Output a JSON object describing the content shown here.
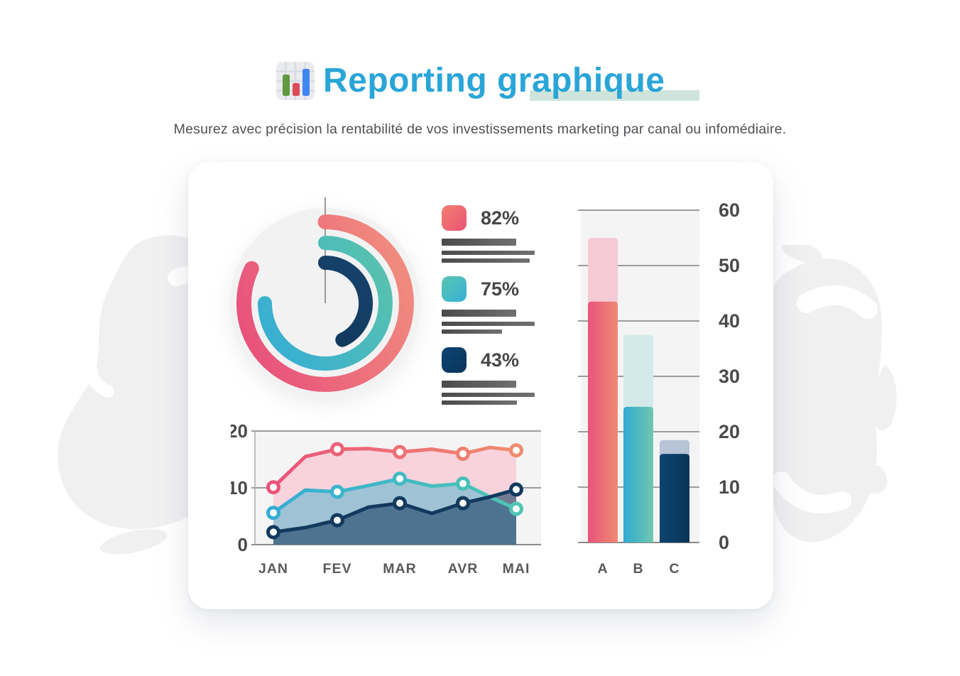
{
  "header": {
    "icon": "bar-chart-icon",
    "title": "Reporting graphique",
    "title_color": "#2AA5D8",
    "highlight_color": "#CFE5DB",
    "subtitle": "Mesurez avec précision la rentabilité de vos investissements marketing par canal ou infomédiaire."
  },
  "chart_data": [
    {
      "type": "pie",
      "variant": "concentric-radial-progress",
      "start_position": "12-oclock",
      "direction": "clockwise",
      "track_color": "#F2F2F3",
      "pointer_line_color": "#999999",
      "rings": [
        {
          "label": "82%",
          "value": 82,
          "radius": "outer",
          "gradient": [
            "#F2937E",
            "#E84E7B"
          ]
        },
        {
          "label": "75%",
          "value": 75,
          "radius": "middle",
          "gradient": [
            "#5AC3AC",
            "#35ADD6"
          ]
        },
        {
          "label": "43%",
          "value": 43,
          "radius": "inner",
          "gradient": [
            "#16426B",
            "#0E3356"
          ]
        }
      ],
      "legend": [
        {
          "label": "82%",
          "swatch_gradient": [
            "#F1806F",
            "#EB5375"
          ],
          "skeleton_bar_widths": [
            105,
            131,
            124
          ]
        },
        {
          "label": "75%",
          "swatch_gradient": [
            "#5BC5B2",
            "#35B1D4"
          ],
          "skeleton_bar_widths": [
            105,
            131,
            85
          ]
        },
        {
          "label": "43%",
          "swatch_gradient": [
            "#0E4474",
            "#093459"
          ],
          "skeleton_bar_widths": [
            105,
            131,
            106
          ]
        }
      ],
      "skeleton_bar_color": [
        "#4B4B4B",
        "#707070"
      ]
    },
    {
      "type": "area",
      "x_tick_labels": [
        "JAN",
        "FEV",
        "MAR",
        "AVR",
        "MAI"
      ],
      "note": "values sampled at each month and at midpoints between months",
      "ylim": [
        0,
        20
      ],
      "yticks": [
        0,
        10,
        20
      ],
      "plot_background": "#F4F4F5",
      "gridline_color": "#9C9CA0",
      "series": [
        {
          "name": "rose",
          "stroke_gradient": [
            "#E9537A",
            "#F08C70"
          ],
          "fill": "#F8D3DC",
          "fill_opacity": 1,
          "values": [
            10.1,
            15.5,
            16.8,
            16.9,
            16.3,
            16.8,
            16.0,
            17.1,
            16.6
          ]
        },
        {
          "name": "teal",
          "stroke_gradient": [
            "#35ADD5",
            "#4EC6B2"
          ],
          "fill": "#46B4CD",
          "fill_opacity": 0.5,
          "values": [
            5.6,
            9.6,
            9.3,
            10.4,
            11.6,
            10.3,
            10.75,
            8.4,
            6.3
          ]
        },
        {
          "name": "navy",
          "stroke_gradient": [
            "#123A5F",
            "#123A5F"
          ],
          "fill": "#12395E",
          "fill_opacity": 0.58,
          "values": [
            2.2,
            3.0,
            4.3,
            6.6,
            7.3,
            5.5,
            7.3,
            8.4,
            9.7
          ]
        }
      ],
      "marker_style": {
        "fill": "#FFFFFF",
        "radius": 7.5,
        "stroke_width": 5
      }
    },
    {
      "type": "bar",
      "categories": [
        "A",
        "B",
        "C"
      ],
      "ylim": [
        0,
        60
      ],
      "yticks": [
        0,
        10,
        20,
        30,
        40,
        50,
        60
      ],
      "plot_background": "#F4F4F5",
      "gridline_color": "#9C9CA0",
      "series": [
        {
          "name": "value",
          "values": [
            43.5,
            24.5,
            16.0
          ],
          "colors": [
            [
              "#E8557B",
              "#EF8A72"
            ],
            [
              "#2FABD3",
              "#6FC6AF"
            ],
            [
              "#0D4470",
              "#093459"
            ]
          ]
        },
        {
          "name": "projection",
          "values": [
            55.0,
            37.5,
            18.5
          ],
          "colors": [
            [
              "#F5CAD4",
              "#F5CAD4"
            ],
            [
              "#D4EAEA",
              "#D4EAEA"
            ],
            [
              "#B7C5D7",
              "#B7C5D7"
            ]
          ]
        }
      ]
    }
  ],
  "labels": {
    "axis_text_color": "#4A4A4A",
    "category_text_color": "#5A5A5A"
  }
}
